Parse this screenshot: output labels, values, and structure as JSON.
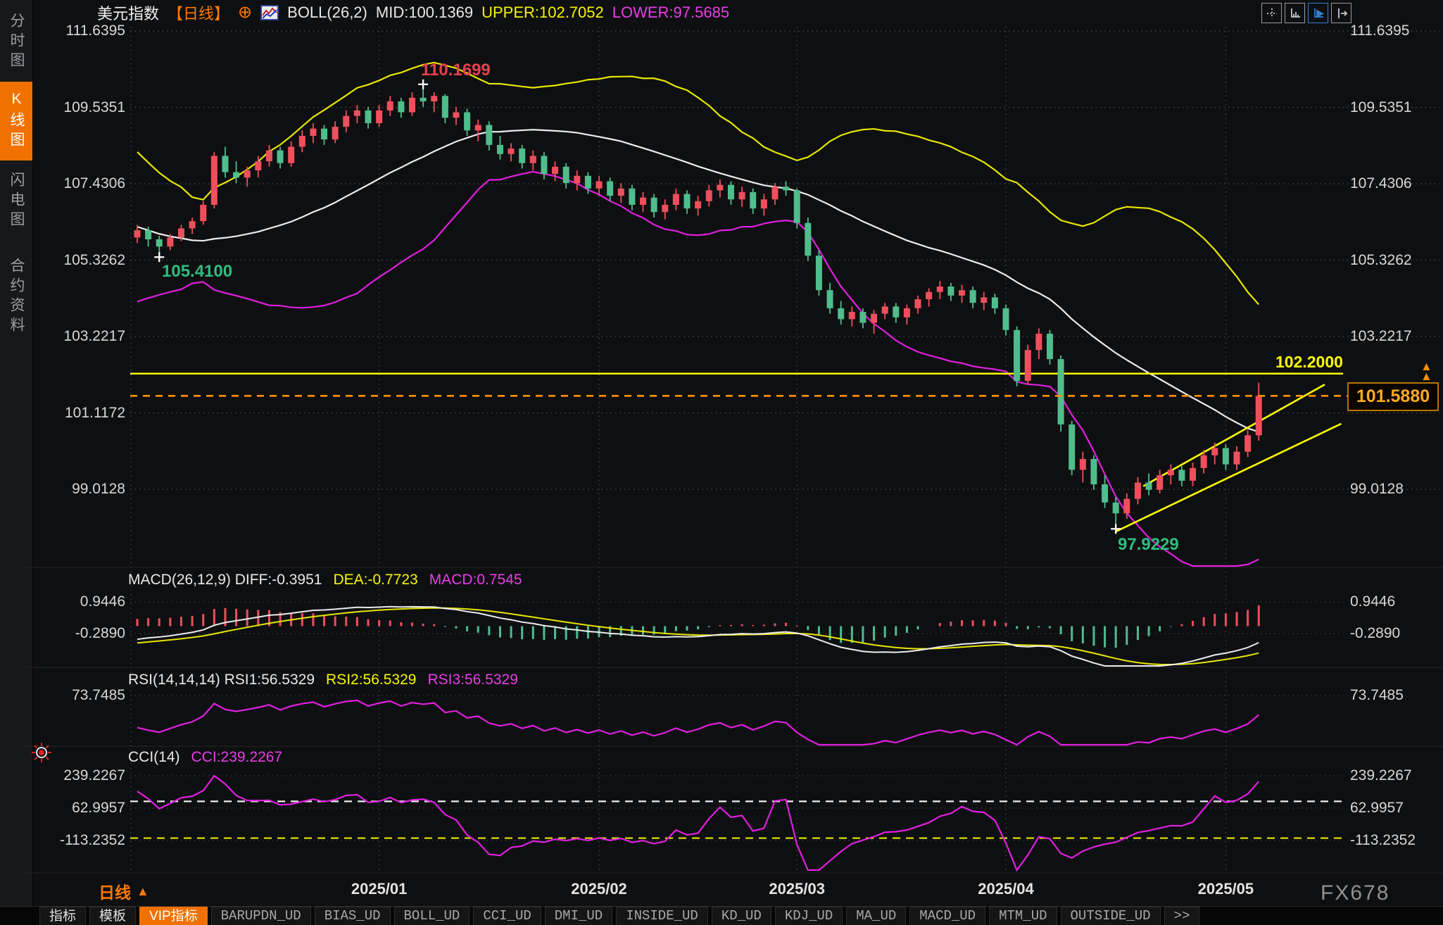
{
  "header": {
    "symbol": "美元指数",
    "period_tag": "【日线】",
    "plus_icon": "⊕",
    "indicator": "BOLL(26,2)",
    "mid": "MID:100.1369",
    "upper": "UPPER:102.7052",
    "lower": "LOWER:97.5685"
  },
  "sidebar": {
    "items": [
      {
        "label": "分时图",
        "active": false
      },
      {
        "label": "K线图",
        "active": true
      },
      {
        "label": "闪电图",
        "active": false
      },
      {
        "label": "合约资料",
        "active": false
      }
    ]
  },
  "toolbar": {
    "icons": [
      {
        "name": "pan-crosshair-icon",
        "active": false
      },
      {
        "name": "axis-scale-icon",
        "active": false
      },
      {
        "name": "auto-scroll-icon",
        "active": true
      },
      {
        "name": "shift-bar-icon",
        "active": false
      }
    ]
  },
  "panels": {
    "macd": {
      "label": "MACD(26,12,9) DIFF:-0.3951",
      "dea": "DEA:-0.7723",
      "macd": "MACD:0.7545"
    },
    "rsi": {
      "label": "RSI(14,14,14) RSI1:56.5329",
      "rsi2": "RSI2:56.5329",
      "rsi3": "RSI3:56.5329"
    },
    "cci": {
      "label": "CCI(14)",
      "cci": "CCI:239.2267"
    }
  },
  "annotations": {
    "high": "110.1699",
    "early_low": "105.4100",
    "low": "97.9229",
    "hline": "102.2000",
    "last_price": "101.5880",
    "price_arrow": "▲"
  },
  "x_axis": {
    "period_label": "日线",
    "period_arrow": "▲"
  },
  "watermark": "FX678",
  "bottom_tabs": [
    {
      "label": "指标",
      "cjk": true,
      "active": false
    },
    {
      "label": "模板",
      "cjk": true,
      "active": false
    },
    {
      "label": "VIP指标",
      "cjk": true,
      "active": true
    },
    {
      "label": "BARUPDN_UD",
      "cjk": false,
      "active": false
    },
    {
      "label": "BIAS_UD",
      "cjk": false,
      "active": false
    },
    {
      "label": "BOLL_UD",
      "cjk": false,
      "active": false
    },
    {
      "label": "CCI_UD",
      "cjk": false,
      "active": false
    },
    {
      "label": "DMI_UD",
      "cjk": false,
      "active": false
    },
    {
      "label": "INSIDE_UD",
      "cjk": false,
      "active": false
    },
    {
      "label": "KD_UD",
      "cjk": false,
      "active": false
    },
    {
      "label": "KDJ_UD",
      "cjk": false,
      "active": false
    },
    {
      "label": "MA_UD",
      "cjk": false,
      "active": false
    },
    {
      "label": "MACD_UD",
      "cjk": false,
      "active": false
    },
    {
      "label": "MTM_UD",
      "cjk": false,
      "active": false
    },
    {
      "label": "OUTSIDE_UD",
      "cjk": false,
      "active": false
    },
    {
      "label": ">>",
      "cjk": false,
      "active": false
    }
  ],
  "colors": {
    "up": "#ef4f5c",
    "down": "#4fbd8c",
    "boll_upper": "#e6e600",
    "boll_mid": "#ececec",
    "boll_lower": "#e020e0",
    "accent_orange": "#f07100",
    "trend_yellow": "#ffff00",
    "last_price_orange": "#ff9000",
    "grid": "#4a4a4a",
    "macd_diff": "#ececec",
    "macd_dea": "#e6e600",
    "osc_magenta": "#e020e0"
  },
  "chart_data": {
    "type": "candlestick",
    "title": "美元指数 日线 (US Dollar Index, daily) with BOLL(26,2); sub-panels MACD(26,12,9), RSI(14,14,14), CCI(14)",
    "visible_from": 25,
    "y_axis_labels": [
      111.6395,
      109.5351,
      107.4306,
      105.3262,
      103.2217,
      101.1172,
      99.0128
    ],
    "y_axis_right_skip": 101.1172,
    "x_labels": [
      {
        "label": "2025/01",
        "index": 22
      },
      {
        "label": "2025/02",
        "index": 42
      },
      {
        "label": "2025/03",
        "index": 60
      },
      {
        "label": "2025/04",
        "index": 79
      },
      {
        "label": "2025/05",
        "index": 99
      }
    ],
    "candles": [
      [
        108.6,
        108.8,
        108.3,
        108.45
      ],
      [
        108.45,
        108.6,
        108.05,
        108.2
      ],
      [
        108.2,
        108.35,
        107.7,
        107.8
      ],
      [
        107.8,
        108.0,
        107.3,
        107.5
      ],
      [
        107.5,
        107.95,
        107.35,
        107.9
      ],
      [
        107.9,
        107.95,
        107.1,
        107.2
      ],
      [
        107.2,
        107.35,
        106.6,
        106.8
      ],
      [
        106.8,
        107.1,
        106.6,
        107.0
      ],
      [
        107.0,
        107.05,
        106.4,
        106.5
      ],
      [
        106.5,
        106.6,
        106.0,
        106.2
      ],
      [
        106.2,
        106.5,
        106.05,
        106.4
      ],
      [
        106.4,
        106.45,
        105.9,
        106.0
      ],
      [
        106.0,
        106.1,
        105.5,
        105.7
      ],
      [
        105.7,
        106.0,
        105.55,
        105.9
      ],
      [
        105.9,
        105.95,
        105.4,
        105.5
      ],
      [
        105.5,
        105.6,
        105.1,
        105.3
      ],
      [
        105.3,
        105.7,
        105.2,
        105.6
      ],
      [
        105.6,
        105.65,
        105.05,
        105.2
      ],
      [
        105.2,
        105.3,
        104.85,
        105.0
      ],
      [
        105.0,
        105.4,
        104.9,
        105.3
      ],
      [
        105.3,
        105.35,
        104.75,
        104.9
      ],
      [
        104.9,
        105.2,
        104.8,
        105.1
      ],
      [
        105.1,
        105.5,
        105.0,
        105.4
      ],
      [
        105.4,
        105.7,
        105.3,
        105.6
      ],
      [
        105.6,
        105.9,
        105.5,
        105.8
      ],
      [
        105.95,
        106.3,
        105.8,
        106.15
      ],
      [
        106.15,
        106.25,
        105.7,
        105.9
      ],
      [
        105.9,
        106.0,
        105.41,
        105.7
      ],
      [
        105.7,
        106.05,
        105.6,
        105.95
      ],
      [
        105.95,
        106.3,
        105.85,
        106.2
      ],
      [
        106.2,
        106.5,
        106.05,
        106.4
      ],
      [
        106.4,
        106.95,
        106.3,
        106.85
      ],
      [
        106.85,
        108.3,
        106.75,
        108.2
      ],
      [
        108.2,
        108.45,
        107.6,
        107.75
      ],
      [
        107.75,
        108.05,
        107.45,
        107.6
      ],
      [
        107.6,
        107.9,
        107.35,
        107.8
      ],
      [
        107.8,
        108.2,
        107.6,
        108.05
      ],
      [
        108.05,
        108.5,
        107.9,
        108.35
      ],
      [
        108.35,
        108.45,
        107.85,
        108.0
      ],
      [
        108.0,
        108.6,
        107.9,
        108.45
      ],
      [
        108.45,
        108.9,
        108.3,
        108.75
      ],
      [
        108.75,
        109.1,
        108.55,
        108.95
      ],
      [
        108.95,
        109.05,
        108.5,
        108.65
      ],
      [
        108.65,
        109.15,
        108.55,
        109.0
      ],
      [
        109.0,
        109.45,
        108.85,
        109.3
      ],
      [
        109.3,
        109.6,
        109.1,
        109.45
      ],
      [
        109.45,
        109.55,
        108.95,
        109.1
      ],
      [
        109.1,
        109.6,
        109.0,
        109.45
      ],
      [
        109.45,
        109.85,
        109.3,
        109.7
      ],
      [
        109.7,
        109.8,
        109.25,
        109.4
      ],
      [
        109.4,
        109.95,
        109.3,
        109.8
      ],
      [
        109.8,
        110.1699,
        109.55,
        109.7
      ],
      [
        109.7,
        109.95,
        109.4,
        109.85
      ],
      [
        109.85,
        109.9,
        109.1,
        109.25
      ],
      [
        109.25,
        109.55,
        109.05,
        109.4
      ],
      [
        109.4,
        109.5,
        108.75,
        108.9
      ],
      [
        108.9,
        109.2,
        108.6,
        109.05
      ],
      [
        109.05,
        109.15,
        108.35,
        108.5
      ],
      [
        108.5,
        108.75,
        108.1,
        108.25
      ],
      [
        108.25,
        108.55,
        108.05,
        108.4
      ],
      [
        108.4,
        108.5,
        107.85,
        108.0
      ],
      [
        108.0,
        108.35,
        107.8,
        108.2
      ],
      [
        108.2,
        108.3,
        107.55,
        107.7
      ],
      [
        107.7,
        108.05,
        107.5,
        107.9
      ],
      [
        107.9,
        108.0,
        107.3,
        107.45
      ],
      [
        107.45,
        107.8,
        107.25,
        107.65
      ],
      [
        107.65,
        107.75,
        107.15,
        107.3
      ],
      [
        107.3,
        107.65,
        107.1,
        107.5
      ],
      [
        107.5,
        107.6,
        106.95,
        107.1
      ],
      [
        107.1,
        107.45,
        106.9,
        107.3
      ],
      [
        107.3,
        107.4,
        106.7,
        106.85
      ],
      [
        106.85,
        107.2,
        106.65,
        107.05
      ],
      [
        107.05,
        107.15,
        106.5,
        106.65
      ],
      [
        106.65,
        107.0,
        106.45,
        106.85
      ],
      [
        106.85,
        107.3,
        106.7,
        107.15
      ],
      [
        107.15,
        107.25,
        106.6,
        106.75
      ],
      [
        106.75,
        107.1,
        106.55,
        106.95
      ],
      [
        106.95,
        107.4,
        106.8,
        107.25
      ],
      [
        107.25,
        107.55,
        107.05,
        107.4
      ],
      [
        107.4,
        107.5,
        106.85,
        107.0
      ],
      [
        107.0,
        107.35,
        106.8,
        107.2
      ],
      [
        107.2,
        107.3,
        106.6,
        106.75
      ],
      [
        106.75,
        107.15,
        106.55,
        107.0
      ],
      [
        107.0,
        107.45,
        106.85,
        107.35
      ],
      [
        107.35,
        107.5,
        107.1,
        107.25
      ],
      [
        107.25,
        107.3,
        106.2,
        106.35
      ],
      [
        106.35,
        106.5,
        105.3,
        105.45
      ],
      [
        105.45,
        105.6,
        104.35,
        104.5
      ],
      [
        104.5,
        104.7,
        103.85,
        104.0
      ],
      [
        104.0,
        104.2,
        103.55,
        103.7
      ],
      [
        103.7,
        104.05,
        103.5,
        103.9
      ],
      [
        103.9,
        104.0,
        103.45,
        103.6
      ],
      [
        103.6,
        103.95,
        103.3,
        103.85
      ],
      [
        103.85,
        104.15,
        103.7,
        104.05
      ],
      [
        104.05,
        104.15,
        103.6,
        103.75
      ],
      [
        103.75,
        104.1,
        103.55,
        104.0
      ],
      [
        104.0,
        104.35,
        103.85,
        104.25
      ],
      [
        104.25,
        104.55,
        104.05,
        104.45
      ],
      [
        104.45,
        104.75,
        104.25,
        104.6
      ],
      [
        104.6,
        104.7,
        104.2,
        104.35
      ],
      [
        104.35,
        104.65,
        104.15,
        104.5
      ],
      [
        104.5,
        104.6,
        104.0,
        104.15
      ],
      [
        104.15,
        104.45,
        103.95,
        104.3
      ],
      [
        104.3,
        104.4,
        103.85,
        104.0
      ],
      [
        104.0,
        104.1,
        103.25,
        103.4
      ],
      [
        103.4,
        103.5,
        101.85,
        102.0
      ],
      [
        102.0,
        103.0,
        101.9,
        102.85
      ],
      [
        102.85,
        103.45,
        102.6,
        103.3
      ],
      [
        103.3,
        103.4,
        102.45,
        102.6
      ],
      [
        102.6,
        102.7,
        100.6,
        100.8
      ],
      [
        100.8,
        100.9,
        99.4,
        99.55
      ],
      [
        99.55,
        100.05,
        99.2,
        99.85
      ],
      [
        99.85,
        99.95,
        99.0,
        99.15
      ],
      [
        99.15,
        99.4,
        98.5,
        98.65
      ],
      [
        98.65,
        98.8,
        97.9229,
        98.35
      ],
      [
        98.35,
        98.9,
        98.2,
        98.75
      ],
      [
        98.75,
        99.35,
        98.6,
        99.2
      ],
      [
        99.2,
        99.45,
        98.85,
        99.0
      ],
      [
        99.0,
        99.55,
        98.9,
        99.4
      ],
      [
        99.4,
        99.7,
        99.15,
        99.55
      ],
      [
        99.55,
        99.65,
        99.1,
        99.25
      ],
      [
        99.25,
        99.75,
        99.1,
        99.6
      ],
      [
        99.6,
        100.1,
        99.45,
        99.95
      ],
      [
        99.95,
        100.3,
        99.7,
        100.15
      ],
      [
        100.15,
        100.25,
        99.55,
        99.7
      ],
      [
        99.7,
        100.2,
        99.55,
        100.05
      ],
      [
        100.05,
        100.65,
        99.9,
        100.5
      ],
      [
        100.5,
        101.95,
        100.35,
        101.588
      ]
    ],
    "overlays": {
      "boll": {
        "period": 26,
        "mult": 2,
        "mid": 100.1369,
        "upper": 102.7052,
        "lower": 97.5685
      },
      "hline": 102.2,
      "last_price": 101.588,
      "trendlines": [
        {
          "from": [
            89,
            97.85
          ],
          "to": [
            109.5,
            100.82
          ]
        },
        {
          "from": [
            91.5,
            99.1
          ],
          "to": [
            108,
            101.9
          ]
        }
      ],
      "markers": [
        {
          "index": 26,
          "price": 110.1699,
          "side": "high"
        },
        {
          "index": 2,
          "price": 105.41,
          "side": "low"
        },
        {
          "index": 89,
          "price": 97.9229,
          "side": "low"
        }
      ]
    },
    "sub_panels": [
      {
        "type": "macd",
        "params": [
          26,
          12,
          9
        ],
        "diff": -0.3951,
        "dea": -0.7723,
        "macd": 0.7545,
        "axis": [
          0.9446,
          -0.289
        ]
      },
      {
        "type": "rsi",
        "params": [
          14,
          14,
          14
        ],
        "rsi1": 56.5329,
        "rsi2": 56.5329,
        "rsi3": 56.5329,
        "axis": [
          73.7485
        ]
      },
      {
        "type": "cci",
        "params": [
          14
        ],
        "cci": 239.2267,
        "axis": [
          239.2267,
          62.9957,
          -113.2352
        ],
        "ref_lines": [
          100,
          -100
        ]
      }
    ]
  }
}
